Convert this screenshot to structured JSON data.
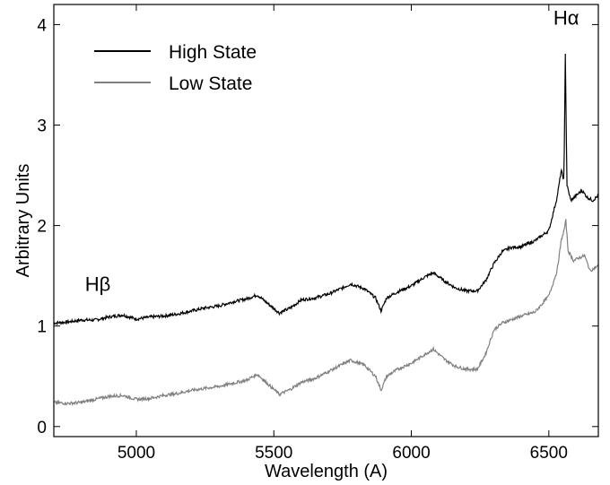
{
  "chart_data": {
    "type": "line",
    "title": "",
    "xlabel": "Wavelength  (A)",
    "ylabel": "Arbitrary Units",
    "xlim": [
      4700,
      6680
    ],
    "ylim": [
      -0.1,
      4.2
    ],
    "xticks": [
      5000,
      5500,
      6000,
      6500
    ],
    "yticks": [
      0,
      1,
      2,
      3,
      4
    ],
    "grid": false,
    "legend_position": "top-left",
    "annotations": [
      {
        "text": "Hβ",
        "x": 4860,
        "y": 1.35
      },
      {
        "text": "Hα",
        "x": 6563,
        "y": 4.0
      }
    ],
    "series": [
      {
        "name": "High State",
        "color": "#000000",
        "points": [
          [
            4700,
            1.03
          ],
          [
            4750,
            1.04
          ],
          [
            4800,
            1.06
          ],
          [
            4850,
            1.06
          ],
          [
            4900,
            1.09
          ],
          [
            4950,
            1.11
          ],
          [
            5000,
            1.07
          ],
          [
            5050,
            1.09
          ],
          [
            5100,
            1.1
          ],
          [
            5150,
            1.12
          ],
          [
            5200,
            1.15
          ],
          [
            5250,
            1.18
          ],
          [
            5300,
            1.2
          ],
          [
            5350,
            1.24
          ],
          [
            5400,
            1.27
          ],
          [
            5440,
            1.31
          ],
          [
            5480,
            1.22
          ],
          [
            5520,
            1.13
          ],
          [
            5560,
            1.18
          ],
          [
            5600,
            1.26
          ],
          [
            5650,
            1.28
          ],
          [
            5700,
            1.32
          ],
          [
            5750,
            1.38
          ],
          [
            5780,
            1.42
          ],
          [
            5830,
            1.37
          ],
          [
            5870,
            1.28
          ],
          [
            5890,
            1.15
          ],
          [
            5910,
            1.28
          ],
          [
            5950,
            1.34
          ],
          [
            6000,
            1.4
          ],
          [
            6050,
            1.49
          ],
          [
            6080,
            1.53
          ],
          [
            6120,
            1.45
          ],
          [
            6160,
            1.38
          ],
          [
            6200,
            1.35
          ],
          [
            6240,
            1.35
          ],
          [
            6270,
            1.45
          ],
          [
            6300,
            1.62
          ],
          [
            6330,
            1.74
          ],
          [
            6360,
            1.78
          ],
          [
            6400,
            1.79
          ],
          [
            6450,
            1.85
          ],
          [
            6500,
            1.95
          ],
          [
            6530,
            2.28
          ],
          [
            6545,
            2.55
          ],
          [
            6555,
            2.45
          ],
          [
            6560,
            3.72
          ],
          [
            6566,
            2.4
          ],
          [
            6580,
            2.25
          ],
          [
            6600,
            2.3
          ],
          [
            6620,
            2.35
          ],
          [
            6640,
            2.28
          ],
          [
            6660,
            2.25
          ],
          [
            6680,
            2.3
          ]
        ]
      },
      {
        "name": "Low State",
        "color": "#808080",
        "points": [
          [
            4700,
            0.24
          ],
          [
            4750,
            0.23
          ],
          [
            4800,
            0.24
          ],
          [
            4850,
            0.27
          ],
          [
            4900,
            0.3
          ],
          [
            4950,
            0.31
          ],
          [
            5000,
            0.27
          ],
          [
            5050,
            0.28
          ],
          [
            5100,
            0.31
          ],
          [
            5150,
            0.33
          ],
          [
            5200,
            0.36
          ],
          [
            5250,
            0.38
          ],
          [
            5300,
            0.4
          ],
          [
            5350,
            0.43
          ],
          [
            5400,
            0.46
          ],
          [
            5440,
            0.52
          ],
          [
            5480,
            0.42
          ],
          [
            5520,
            0.32
          ],
          [
            5560,
            0.37
          ],
          [
            5600,
            0.44
          ],
          [
            5650,
            0.48
          ],
          [
            5700,
            0.55
          ],
          [
            5750,
            0.62
          ],
          [
            5780,
            0.66
          ],
          [
            5830,
            0.61
          ],
          [
            5870,
            0.5
          ],
          [
            5890,
            0.36
          ],
          [
            5910,
            0.5
          ],
          [
            5950,
            0.57
          ],
          [
            6000,
            0.63
          ],
          [
            6050,
            0.72
          ],
          [
            6080,
            0.77
          ],
          [
            6120,
            0.67
          ],
          [
            6160,
            0.6
          ],
          [
            6200,
            0.57
          ],
          [
            6240,
            0.57
          ],
          [
            6270,
            0.72
          ],
          [
            6300,
            0.96
          ],
          [
            6330,
            1.03
          ],
          [
            6360,
            1.06
          ],
          [
            6400,
            1.1
          ],
          [
            6450,
            1.14
          ],
          [
            6500,
            1.3
          ],
          [
            6530,
            1.55
          ],
          [
            6545,
            1.85
          ],
          [
            6555,
            1.95
          ],
          [
            6562,
            2.05
          ],
          [
            6570,
            1.75
          ],
          [
            6590,
            1.65
          ],
          [
            6610,
            1.68
          ],
          [
            6630,
            1.7
          ],
          [
            6650,
            1.55
          ],
          [
            6680,
            1.6
          ]
        ]
      }
    ]
  }
}
